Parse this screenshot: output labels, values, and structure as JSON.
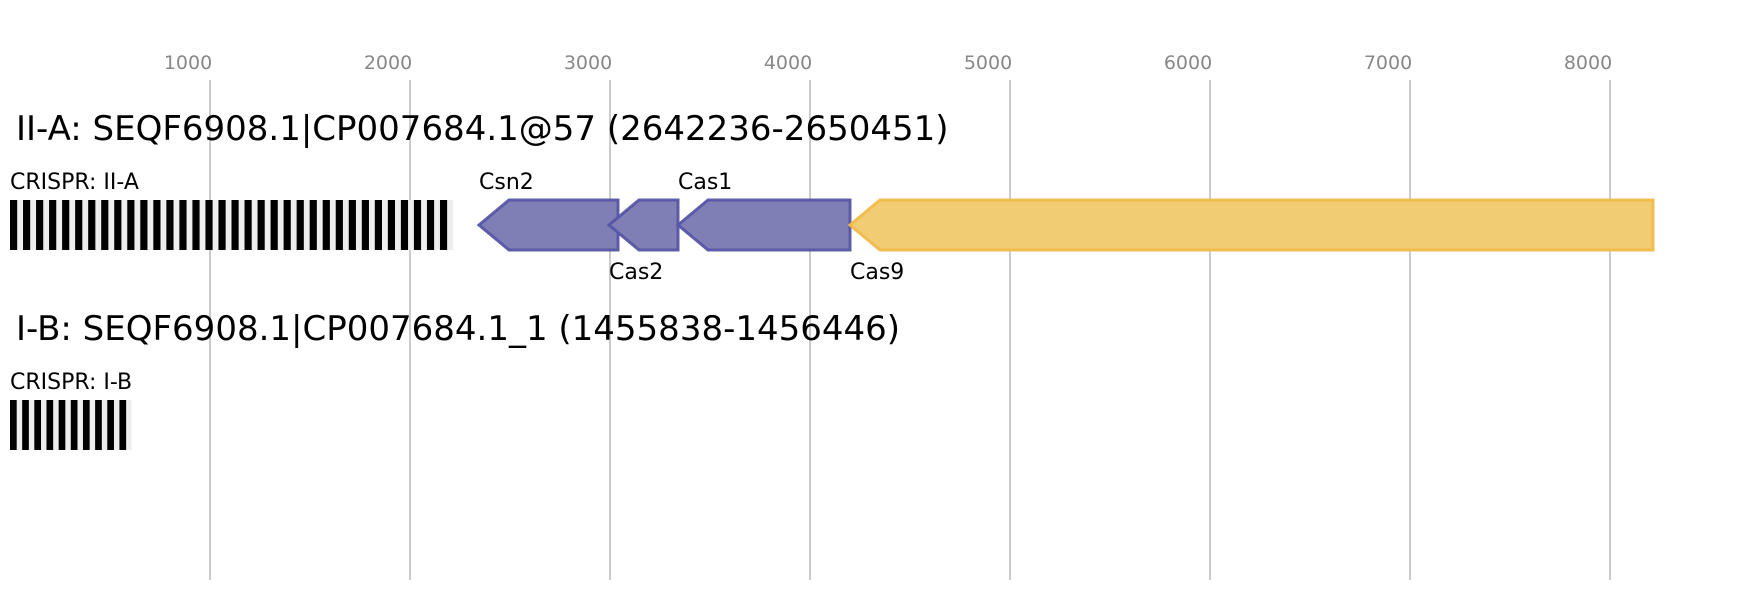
{
  "axis": {
    "ticks": [
      1000,
      2000,
      3000,
      4000,
      5000,
      6000,
      7000,
      8000
    ],
    "grid": true
  },
  "colors": {
    "gene_fill": "#7f7fb6",
    "gene_stroke": "#5656a6",
    "cas9_fill": "#f2cc73",
    "cas9_stroke": "#efbb4a",
    "crispr_repeat": "#000000",
    "crispr_spacer": "#eeeeee"
  },
  "loci": [
    {
      "title": "II-A: SEQF6908.1|CP007684.1@57 (2642236-2650451)",
      "crispr": {
        "label": "CRISPR: II-A",
        "start": 0,
        "end": 2215,
        "repeats": 34
      },
      "genes": [
        {
          "label": "Csn2",
          "start": 2345,
          "end": 3040,
          "strand": "-",
          "label_pos": "above",
          "color": "purple"
        },
        {
          "label": "Cas2",
          "start": 2995,
          "end": 3340,
          "strand": "-",
          "label_pos": "below",
          "color": "purple"
        },
        {
          "label": "Cas1",
          "start": 3340,
          "end": 4200,
          "strand": "-",
          "label_pos": "above",
          "color": "purple"
        },
        {
          "label": "Cas9",
          "start": 4200,
          "end": 8215,
          "strand": "-",
          "label_pos": "below",
          "color": "yellow"
        }
      ]
    },
    {
      "title": "I-B: SEQF6908.1|CP007684.1_1 (1455838-1456446)",
      "crispr": {
        "label": "CRISPR: I-B",
        "start": 0,
        "end": 608,
        "repeats": 10
      },
      "genes": []
    }
  ]
}
